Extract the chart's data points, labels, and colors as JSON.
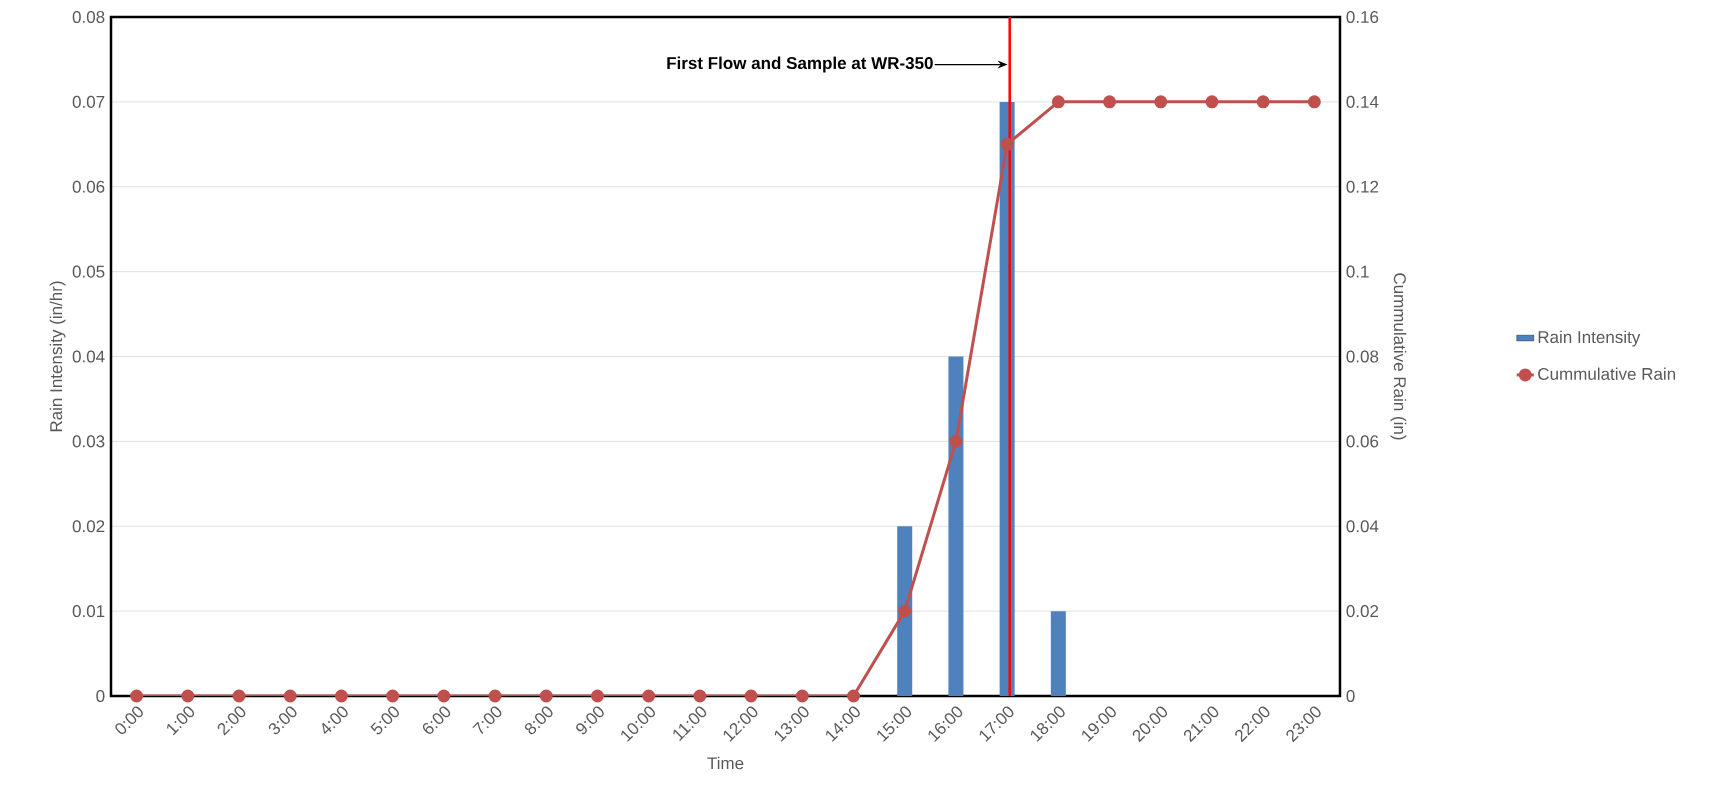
{
  "chart_data": {
    "type": "bar",
    "categories": [
      "0:00",
      "1:00",
      "2:00",
      "3:00",
      "4:00",
      "5:00",
      "6:00",
      "7:00",
      "8:00",
      "9:00",
      "10:00",
      "11:00",
      "12:00",
      "13:00",
      "14:00",
      "15:00",
      "16:00",
      "17:00",
      "18:00",
      "19:00",
      "20:00",
      "21:00",
      "22:00",
      "23:00"
    ],
    "series": [
      {
        "name": "Rain Intensity",
        "color": "#4f81bd",
        "values": [
          0,
          0,
          0,
          0,
          0,
          0,
          0,
          0,
          0,
          0,
          0,
          0,
          0,
          0,
          0,
          0.02,
          0.04,
          0.07,
          0.01,
          0,
          0,
          0,
          0,
          0
        ]
      },
      {
        "name": "Cummulative Rain",
        "type": "line",
        "axis": "y2",
        "color": "#c0504d",
        "values": [
          0,
          0,
          0,
          0,
          0,
          0,
          0,
          0,
          0,
          0,
          0,
          0,
          0,
          0,
          0,
          0.02,
          0.06,
          0.13,
          0.14,
          0.14,
          0.14,
          0.14,
          0.14,
          0.14
        ]
      }
    ],
    "xlabel": "Time",
    "ylabel": "Rain Intensity (in/hr)",
    "y2label": "Cummulative Rain (in)",
    "ylim": [
      0,
      0.08
    ],
    "yticks": [
      0,
      0.01,
      0.02,
      0.03,
      0.04,
      0.05,
      0.06,
      0.07,
      0.08
    ],
    "y2lim": [
      0,
      0.16
    ],
    "y2ticks": [
      0,
      0.02,
      0.04,
      0.06,
      0.08,
      0.1,
      0.12,
      0.14,
      0.16
    ],
    "ref_lines": [
      {
        "axis": "x",
        "value": "17:00",
        "label": "First Flow and Sample at WR-350",
        "color": "#ff0000"
      }
    ],
    "grid": "y",
    "legend": "right",
    "marker": "circle"
  }
}
